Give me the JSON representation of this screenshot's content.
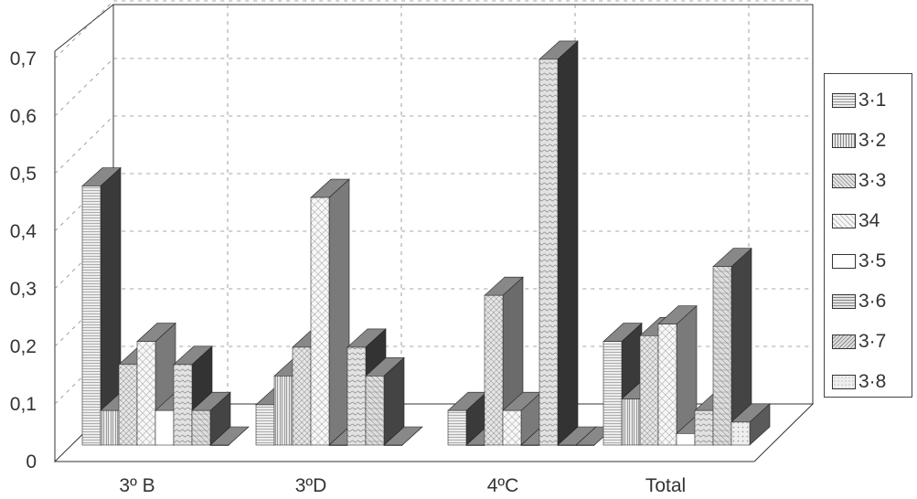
{
  "chart_data": {
    "type": "bar",
    "title": "",
    "xlabel": "",
    "ylabel": "",
    "ylim": [
      0,
      0.7
    ],
    "yticks": [
      "0",
      "0,1",
      "0,2",
      "0,3",
      "0,4",
      "0,5",
      "0,6",
      "0,7"
    ],
    "categories": [
      "3º B",
      "3ºD",
      "4ºC",
      "Total"
    ],
    "grid": true,
    "legend_position": "right",
    "series": [
      {
        "name": "3·1",
        "values": [
          0.45,
          0.07,
          0.06,
          0.18
        ]
      },
      {
        "name": "3·2",
        "values": [
          0.06,
          0.12,
          0.0,
          0.08
        ]
      },
      {
        "name": "3·3",
        "values": [
          0.14,
          0.17,
          0.26,
          0.19
        ]
      },
      {
        "name": "34",
        "values": [
          0.18,
          0.43,
          0.06,
          0.21
        ]
      },
      {
        "name": "3·5",
        "values": [
          0.06,
          0.0,
          0.0,
          0.02
        ]
      },
      {
        "name": "3·6",
        "values": [
          0.14,
          0.17,
          0.67,
          0.06
        ]
      },
      {
        "name": "3·7",
        "values": [
          0.06,
          0.12,
          0.0,
          0.31
        ]
      },
      {
        "name": "3·8",
        "values": [
          0.0,
          0.0,
          0.0,
          0.04
        ]
      }
    ]
  }
}
